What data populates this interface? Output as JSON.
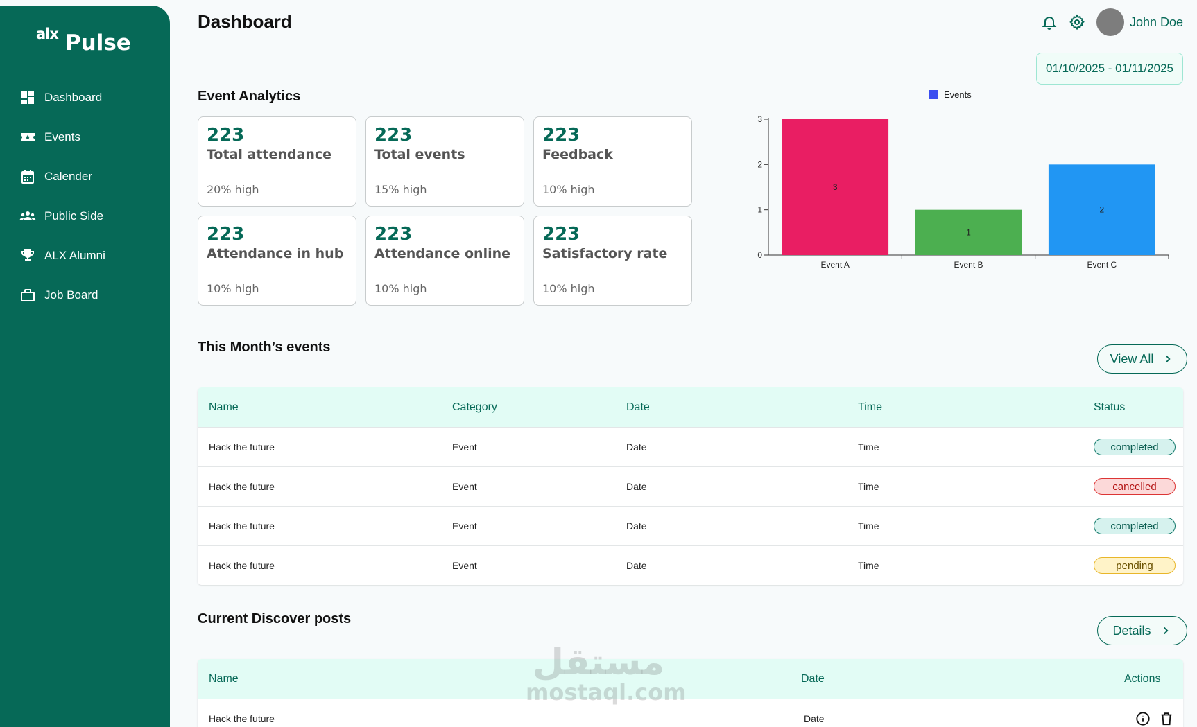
{
  "brand": {
    "prefix": "alx",
    "name": "Pulse"
  },
  "sidebar": {
    "items": [
      {
        "label": "Dashboard",
        "icon": "dashboard-icon"
      },
      {
        "label": "Events",
        "icon": "ticket-star-icon"
      },
      {
        "label": "Calender",
        "icon": "calendar-icon"
      },
      {
        "label": "Public Side",
        "icon": "people-icon"
      },
      {
        "label": "ALX Alumni",
        "icon": "trophy-icon"
      },
      {
        "label": "Job Board",
        "icon": "briefcase-icon"
      }
    ]
  },
  "header": {
    "title": "Dashboard",
    "user_name": "John Doe",
    "date_range": "01/10/2025 - 01/11/2025"
  },
  "analytics": {
    "title": "Event Analytics",
    "cards": [
      {
        "value": "223",
        "label": "Total attendance",
        "note": "20% high"
      },
      {
        "value": "223",
        "label": "Total events",
        "note": "15% high"
      },
      {
        "value": "223",
        "label": "Feedback",
        "note": "10% high"
      },
      {
        "value": "223",
        "label": "Attendance in hub",
        "note": "10% high"
      },
      {
        "value": "223",
        "label": "Attendance online",
        "note": "10% high"
      },
      {
        "value": "223",
        "label": "Satisfactory rate",
        "note": "10% high"
      }
    ]
  },
  "chart_data": {
    "type": "bar",
    "categories": [
      "Event A",
      "Event B",
      "Event C"
    ],
    "series": [
      {
        "name": "Events",
        "values": [
          3,
          1,
          2
        ]
      }
    ],
    "bar_colors": [
      "#e91e63",
      "#4caf50",
      "#2196f3"
    ],
    "legend_color": "#3b4ef0",
    "ylim": [
      0,
      3
    ],
    "yticks": [
      "0",
      "1",
      "2",
      "3"
    ],
    "legend_position": "top-center",
    "grid": false
  },
  "monthly_events": {
    "title": "This Month’s events",
    "view_all_label": "View All",
    "columns": [
      "Name",
      "Category",
      "Date",
      "Time",
      "Status"
    ],
    "rows": [
      {
        "name": "Hack the future",
        "category": "Event",
        "date": "Date",
        "time": "Time",
        "status": "completed"
      },
      {
        "name": "Hack the future",
        "category": "Event",
        "date": "Date",
        "time": "Time",
        "status": "cancelled"
      },
      {
        "name": "Hack the future",
        "category": "Event",
        "date": "Date",
        "time": "Time",
        "status": "completed"
      },
      {
        "name": "Hack the future",
        "category": "Event",
        "date": "Date",
        "time": "Time",
        "status": "pending"
      }
    ]
  },
  "discover_posts": {
    "title": "Current Discover posts",
    "details_label": "Details",
    "columns": [
      "Name",
      "Date",
      "Actions"
    ],
    "rows": [
      {
        "name": "Hack the future",
        "date": "Date"
      }
    ]
  },
  "watermark": {
    "arabic": "مستقل",
    "latin": "mostaql.com"
  }
}
